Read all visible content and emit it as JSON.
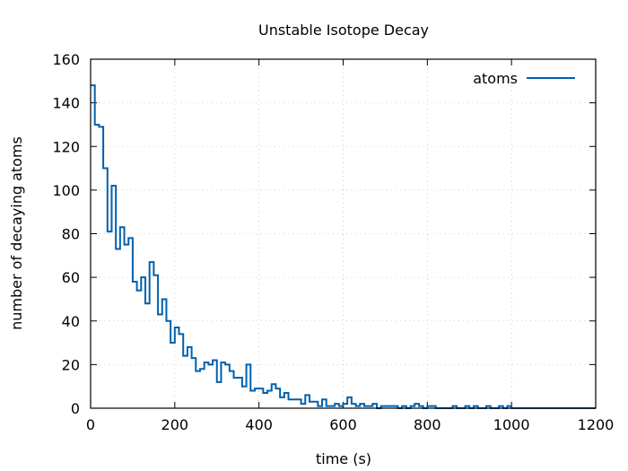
{
  "chart_data": {
    "type": "line",
    "title": "Unstable Isotope Decay",
    "xlabel": "time (s)",
    "ylabel": "number of decaying atoms",
    "xlim": [
      0,
      1200
    ],
    "ylim": [
      0,
      160
    ],
    "xticks": [
      0,
      200,
      400,
      600,
      800,
      1000,
      1200
    ],
    "yticks": [
      0,
      20,
      40,
      60,
      80,
      100,
      120,
      140,
      160
    ],
    "grid": true,
    "legend_position": "top-right",
    "series_color": "#0060ad",
    "series": [
      {
        "name": "atoms",
        "style": "histogram-steps",
        "bin_width": 10,
        "x": [
          0,
          10,
          20,
          30,
          40,
          50,
          60,
          70,
          80,
          90,
          100,
          110,
          120,
          130,
          140,
          150,
          160,
          170,
          180,
          190,
          200,
          210,
          220,
          230,
          240,
          250,
          260,
          270,
          280,
          290,
          300,
          310,
          320,
          330,
          340,
          350,
          360,
          370,
          380,
          390,
          400,
          410,
          420,
          430,
          440,
          450,
          460,
          470,
          480,
          490,
          500,
          510,
          520,
          530,
          540,
          550,
          560,
          570,
          580,
          590,
          600,
          610,
          620,
          630,
          640,
          650,
          660,
          670,
          680,
          690,
          700,
          710,
          720,
          730,
          740,
          750,
          760,
          770,
          780,
          790,
          800,
          810,
          820,
          830,
          840,
          850,
          860,
          870,
          880,
          890,
          900,
          910,
          920,
          930,
          940,
          950,
          960,
          970,
          980,
          990,
          1000,
          1010,
          1020,
          1030,
          1040,
          1050,
          1060,
          1070,
          1080,
          1090,
          1100,
          1110,
          1120,
          1130,
          1140,
          1150,
          1160,
          1170,
          1180,
          1190
        ],
        "values": [
          148,
          130,
          129,
          110,
          81,
          102,
          73,
          83,
          75,
          78,
          58,
          54,
          60,
          48,
          67,
          61,
          43,
          50,
          40,
          30,
          37,
          34,
          24,
          28,
          23,
          17,
          18,
          21,
          20,
          22,
          12,
          21,
          20,
          17,
          14,
          14,
          10,
          20,
          8,
          9,
          9,
          7,
          8,
          11,
          9,
          5,
          7,
          4,
          4,
          4,
          2,
          6,
          3,
          3,
          1,
          4,
          1,
          1,
          2,
          1,
          2,
          5,
          2,
          1,
          2,
          1,
          1,
          2,
          0,
          1,
          1,
          1,
          1,
          0,
          1,
          0,
          1,
          2,
          1,
          0,
          1,
          1,
          0,
          0,
          0,
          0,
          1,
          0,
          0,
          1,
          0,
          1,
          0,
          0,
          1,
          0,
          0,
          1,
          0,
          1,
          0,
          0,
          0,
          0,
          0,
          0,
          0,
          0,
          0,
          0,
          0,
          0,
          0,
          0,
          0,
          0,
          0,
          0,
          0,
          0
        ]
      }
    ]
  }
}
